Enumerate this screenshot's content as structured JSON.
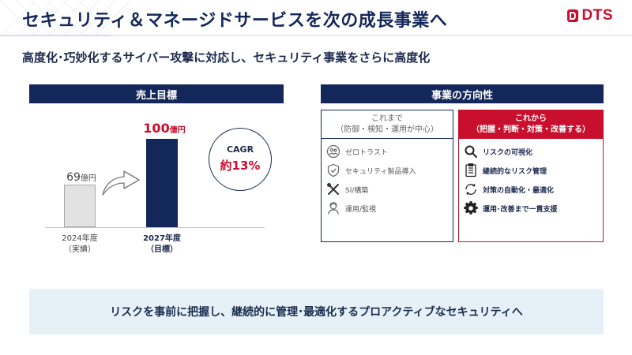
{
  "header": {
    "title": "セキュリティ＆マネージドサービスを次の成長事業へ",
    "logo_text": "DTS",
    "accent_color": "#c8102e",
    "navy_color": "#14275a"
  },
  "subtitle": "高度化･巧妙化するサイバー攻撃に対応し、セキュリティ事業をさらに高度化",
  "sales": {
    "heading": "売上目標",
    "cagr_label": "CAGR",
    "cagr_value": "約13%"
  },
  "chart_data": {
    "type": "bar",
    "categories": [
      "2024年度",
      "2027年度"
    ],
    "category_notes": [
      "（実績）",
      "（目標）"
    ],
    "values": [
      69,
      100
    ],
    "value_labels": [
      "69",
      "100"
    ],
    "unit": "億円",
    "colors": [
      "#e2e2e2",
      "#14275a"
    ]
  },
  "direction": {
    "heading": "事業の方向性",
    "before": {
      "title": "これまで",
      "subtitle": "（防御・検知・運用が中心）",
      "items": [
        {
          "label": "ゼロトラスト",
          "icon": "people-icon"
        },
        {
          "label": "セキュリティ製品導入",
          "icon": "shield-icon"
        },
        {
          "label": "SI/構築",
          "icon": "tools-icon"
        },
        {
          "label": "運用/監視",
          "icon": "operator-icon"
        }
      ]
    },
    "after": {
      "title": "これから",
      "subtitle": "（把握・判断・対策・改善する）",
      "items": [
        {
          "label": "リスクの可視化",
          "icon": "magnifier-icon"
        },
        {
          "label": "継続的なリスク管理",
          "icon": "checklist-icon"
        },
        {
          "label": "対策の自動化・最適化",
          "icon": "cycle-icon"
        },
        {
          "label": "運用･改善まで一貫支援",
          "icon": "gear-icon"
        }
      ]
    }
  },
  "banner": "リスクを事前に把握し、継続的に管理･最適化するプロアクティブなセキュリティへ"
}
